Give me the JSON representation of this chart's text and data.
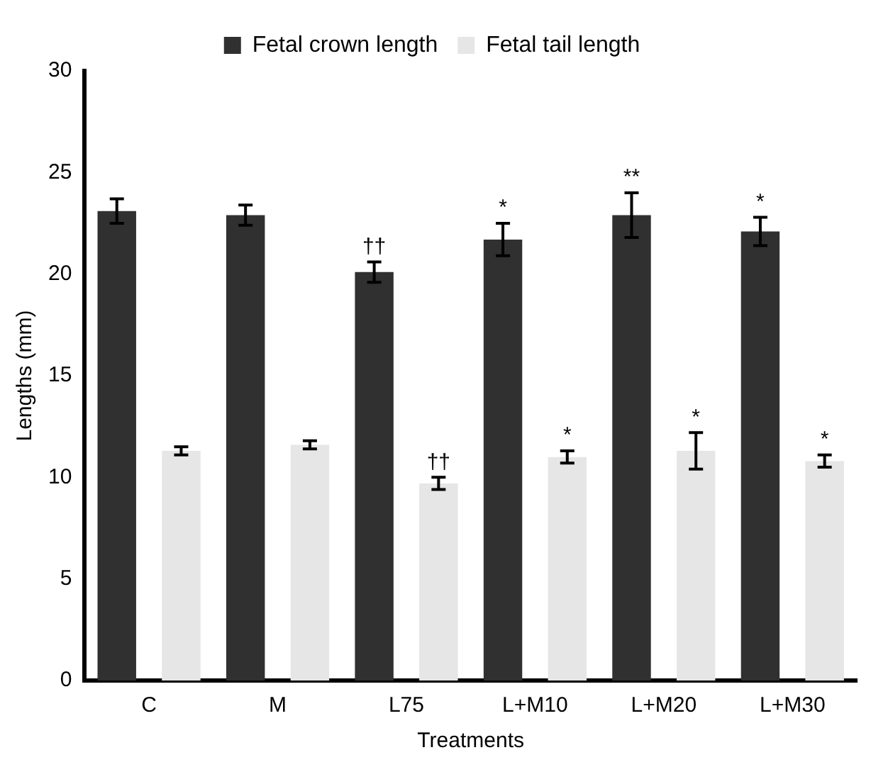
{
  "chart_data": {
    "type": "bar",
    "xlabel": "Treatments",
    "ylabel": "Lengths (mm)",
    "categories": [
      "C",
      "M",
      "L75",
      "L+M10",
      "L+M20",
      "L+M30"
    ],
    "series": [
      {
        "name": "Fetal crown length",
        "color": "#303030",
        "values": [
          23.1,
          22.9,
          20.1,
          21.7,
          22.9,
          22.1
        ],
        "errors": [
          0.6,
          0.5,
          0.5,
          0.8,
          1.1,
          0.7
        ],
        "value_labels": [
          null,
          null,
          "††",
          "*",
          "**",
          "*"
        ]
      },
      {
        "name": "Fetal tail length",
        "color": "#e6e6e6",
        "values": [
          11.3,
          11.6,
          9.7,
          11.0,
          11.3,
          10.8
        ],
        "errors": [
          0.2,
          0.2,
          0.3,
          0.3,
          0.9,
          0.3
        ],
        "value_labels": [
          null,
          null,
          "††",
          "*",
          "*",
          "*"
        ]
      }
    ],
    "ylim": [
      0,
      30
    ],
    "yticks": [
      0,
      5,
      10,
      15,
      20,
      25,
      30
    ],
    "grid": false,
    "legend": "top"
  }
}
